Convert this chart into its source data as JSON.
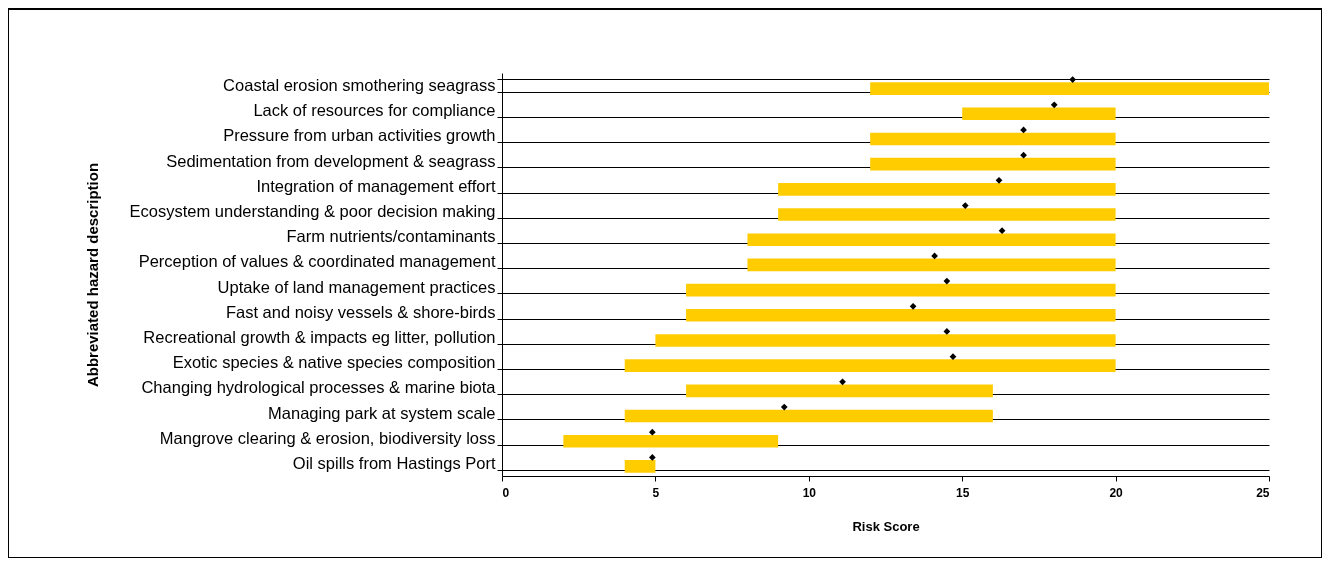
{
  "chart_data": {
    "type": "bar",
    "orientation": "horizontal",
    "xlabel": "Risk Score",
    "ylabel": "Abbreviated hazard description",
    "categories": [
      "Coastal erosion smothering seagrass",
      "Lack of resources for compliance",
      "Pressure from urban activities growth",
      "Sedimentation from development & seagrass",
      "Integration of management effort",
      "Ecosystem understanding & poor decision making",
      "Farm nutrients/contaminants",
      "Perception of values & coordinated management",
      "Uptake of land management practices",
      "Fast and noisy vessels & shore-birds",
      "Recreational growth & impacts eg litter, pollution",
      "Exotic species & native species composition",
      "Changing hydrological processes & marine biota",
      "Managing park at system scale",
      "Mangrove clearing & erosion, biodiversity loss",
      "Oil spills from Hastings Port"
    ],
    "series": [
      {
        "color": "#ffcc00",
        "base": [
          12,
          15,
          12,
          12,
          9,
          9,
          8,
          8,
          6,
          6,
          5,
          4,
          6,
          4,
          2,
          4
        ],
        "values": [
          13,
          5,
          8,
          8,
          11,
          11,
          12,
          12,
          14,
          14,
          15,
          16,
          10,
          12,
          7,
          1
        ]
      },
      {
        "type": "scatter",
        "color": "#000000",
        "marker": "diamond",
        "values": [
          18.6,
          18.0,
          17.0,
          17.0,
          16.2,
          15.1,
          16.3,
          14.1,
          14.5,
          13.4,
          14.5,
          14.7,
          11.1,
          9.2,
          4.9,
          4.9
        ]
      }
    ],
    "xlim": [
      0,
      25
    ],
    "xticks": [
      0,
      5,
      10,
      15,
      20,
      25
    ],
    "grid": "y"
  }
}
